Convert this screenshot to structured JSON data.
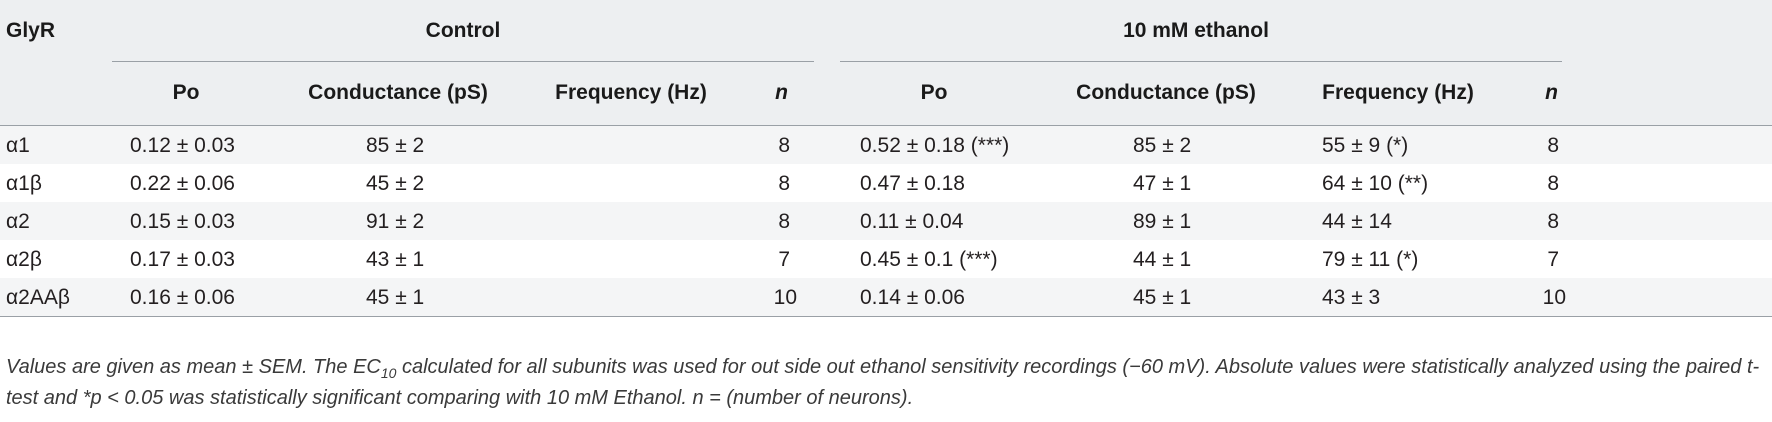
{
  "table": {
    "row_header_label": "GlyR",
    "groups": [
      {
        "label": "Control"
      },
      {
        "label": "10 mM ethanol"
      }
    ],
    "columns": [
      {
        "label": "Po"
      },
      {
        "label": "Conductance (pS)"
      },
      {
        "label": "Frequency (Hz)"
      },
      {
        "label": "n"
      },
      {
        "label": "Po"
      },
      {
        "label": "Conductance (pS)"
      },
      {
        "label": "Frequency (Hz)"
      },
      {
        "label": "n"
      }
    ],
    "rows": [
      {
        "subunit": "α1",
        "cells": [
          "0.12 ± 0.03",
          "85 ± 2",
          "",
          "8",
          "0.52 ± 0.18 (***)",
          "85 ± 2",
          "55 ± 9 (*)",
          "8"
        ]
      },
      {
        "subunit": "α1β",
        "cells": [
          "0.22 ± 0.06",
          "45 ± 2",
          "",
          "8",
          "0.47 ± 0.18",
          "47 ± 1",
          "64 ± 10 (**)",
          "8"
        ]
      },
      {
        "subunit": "α2",
        "cells": [
          "0.15 ± 0.03",
          "91 ± 2",
          "",
          "8",
          "0.11 ± 0.04",
          "89 ± 1",
          "44 ± 14",
          "8"
        ]
      },
      {
        "subunit": "α2β",
        "cells": [
          "0.17 ± 0.03",
          "43 ± 1",
          "",
          "7",
          "0.45 ± 0.1 (***)",
          "44 ± 1",
          "79 ± 11 (*)",
          "7"
        ]
      },
      {
        "subunit": "α2AAβ",
        "cells": [
          "0.16 ± 0.06",
          "45 ± 1",
          "",
          "10",
          "0.14 ± 0.06",
          "45 ± 1",
          "43 ± 3",
          "10"
        ]
      }
    ]
  },
  "footnote": {
    "part1": "Values are given as mean ± SEM. The EC",
    "sub": "10",
    "part2": " calculated for all subunits was used for out side out ethanol sensitivity recordings (−60 mV). Absolute values were statistically analyzed using the paired t-test and *p < 0.05 was statistically significant comparing with 10 mM Ethanol. n = (number of neurons)."
  }
}
